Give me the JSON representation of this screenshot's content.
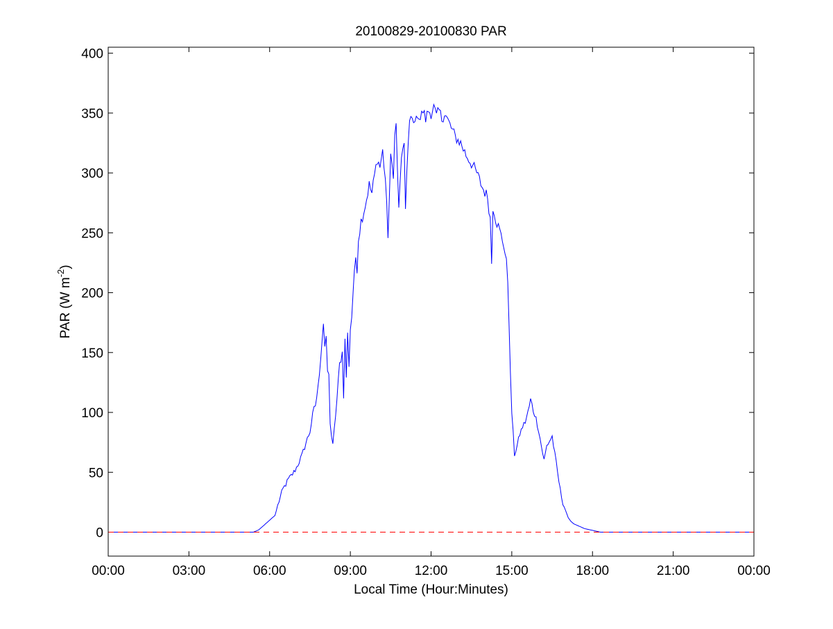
{
  "chart_data": {
    "type": "line",
    "title": "20100829-20100830 PAR",
    "xlabel": "Local Time (Hour:Minutes)",
    "ylabel": "PAR (W m",
    "ylabel_superscript": "-2",
    "ylabel_close": ")",
    "xlim": [
      0,
      24
    ],
    "ylim": [
      -20,
      405
    ],
    "x_tick_values": [
      0,
      3,
      6,
      9,
      12,
      15,
      18,
      21,
      24
    ],
    "x_tick_labels": [
      "00:00",
      "03:00",
      "06:00",
      "09:00",
      "12:00",
      "15:00",
      "18:00",
      "21:00",
      "00:00"
    ],
    "y_tick_values": [
      0,
      50,
      100,
      150,
      200,
      250,
      300,
      350,
      400
    ],
    "y_tick_labels": [
      "0",
      "50",
      "100",
      "150",
      "200",
      "250",
      "300",
      "350",
      "400"
    ],
    "grid": false,
    "legend": "none",
    "reference_line": {
      "y": 0,
      "style": "dashed",
      "color": "#ff0000"
    },
    "series": [
      {
        "color": "#0000ff",
        "x": [
          0,
          5.4,
          5.6,
          5.8,
          6.0,
          6.2,
          6.35,
          6.5,
          6.7,
          6.9,
          7.0,
          7.2,
          7.4,
          7.5,
          7.6,
          7.7,
          7.8,
          7.9,
          8.0,
          8.05,
          8.1,
          8.15,
          8.2,
          8.25,
          8.3,
          8.35,
          8.4,
          8.5,
          8.6,
          8.7,
          8.75,
          8.8,
          8.85,
          8.9,
          8.95,
          9.0,
          9.05,
          9.1,
          9.15,
          9.2,
          9.25,
          9.3,
          9.4,
          9.5,
          9.6,
          9.7,
          9.8,
          9.9,
          10.0,
          10.1,
          10.2,
          10.3,
          10.4,
          10.5,
          10.6,
          10.65,
          10.7,
          10.8,
          10.9,
          11.0,
          11.05,
          11.1,
          11.2,
          11.3,
          11.35,
          11.4,
          11.45,
          11.5,
          11.6,
          11.7,
          11.8,
          11.9,
          12.0,
          12.1,
          12.2,
          12.3,
          12.4,
          12.5,
          12.7,
          12.9,
          13.1,
          13.3,
          13.5,
          13.7,
          13.9,
          14.1,
          14.2,
          14.25,
          14.3,
          14.35,
          14.4,
          14.5,
          14.6,
          14.7,
          14.8,
          14.85,
          14.9,
          14.95,
          15.0,
          15.1,
          15.2,
          15.3,
          15.4,
          15.5,
          15.6,
          15.7,
          15.8,
          15.9,
          16.0,
          16.1,
          16.2,
          16.3,
          16.4,
          16.5,
          16.6,
          16.7,
          16.8,
          16.9,
          17.0,
          17.1,
          17.2,
          17.3,
          17.5,
          17.7,
          17.9,
          18.1,
          18.3,
          18.4,
          18.5,
          18.6,
          18.7,
          19.0,
          24.0
        ],
        "y": [
          0,
          0,
          2,
          6,
          10,
          14,
          26,
          36,
          44,
          50,
          54,
          64,
          78,
          84,
          98,
          106,
          120,
          148,
          175,
          155,
          160,
          135,
          130,
          92,
          80,
          72,
          85,
          110,
          140,
          150,
          115,
          160,
          130,
          165,
          140,
          170,
          180,
          200,
          215,
          230,
          220,
          245,
          260,
          268,
          278,
          290,
          283,
          298,
          312,
          305,
          318,
          295,
          248,
          312,
          300,
          330,
          340,
          268,
          315,
          320,
          270,
          305,
          342,
          345,
          340,
          347,
          343,
          350,
          345,
          352,
          345,
          352,
          350,
          355,
          347,
          352,
          345,
          350,
          340,
          330,
          325,
          315,
          308,
          300,
          288,
          280,
          262,
          225,
          272,
          268,
          262,
          255,
          248,
          240,
          225,
          210,
          175,
          130,
          100,
          65,
          72,
          82,
          88,
          92,
          100,
          110,
          102,
          95,
          85,
          72,
          60,
          72,
          76,
          80,
          65,
          50,
          35,
          25,
          18,
          12,
          9,
          7,
          5,
          3,
          2,
          1,
          0,
          0,
          0,
          0,
          0,
          0,
          0
        ],
        "note_fine_noise": true
      }
    ]
  }
}
